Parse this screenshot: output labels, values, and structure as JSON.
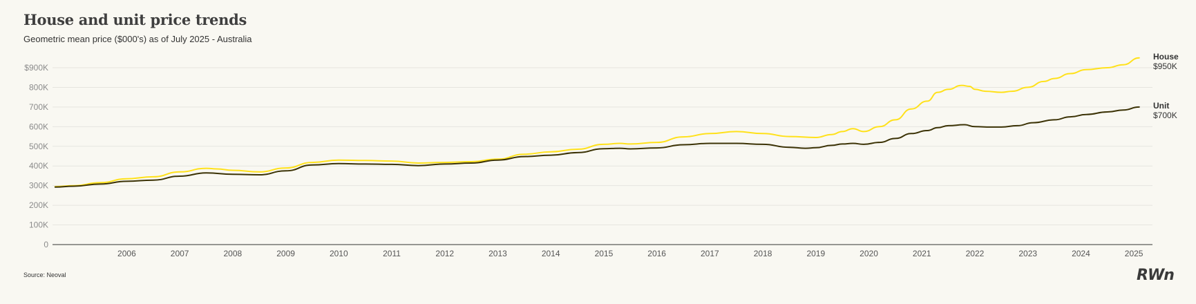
{
  "source": "Source: Neoval",
  "logo_text": "RWn",
  "chart_data": {
    "type": "line",
    "title": "House and unit price trends",
    "subtitle": "Geometric mean price ($000's) as of July 2025 - Australia",
    "xlabel": "",
    "ylabel": "",
    "x_ticks": [
      "2006",
      "2007",
      "2008",
      "2009",
      "2010",
      "2011",
      "2012",
      "2013",
      "2014",
      "2015",
      "2016",
      "2017",
      "2018",
      "2019",
      "2020",
      "2021",
      "2022",
      "2023",
      "2024",
      "2025"
    ],
    "y_ticks": [
      {
        "value": 0,
        "label": "0"
      },
      {
        "value": 100,
        "label": "100K"
      },
      {
        "value": 200,
        "label": "200K"
      },
      {
        "value": 300,
        "label": "300K"
      },
      {
        "value": 400,
        "label": "400K"
      },
      {
        "value": 500,
        "label": "500K"
      },
      {
        "value": 600,
        "label": "600K"
      },
      {
        "value": 700,
        "label": "700K"
      },
      {
        "value": 800,
        "label": "800K"
      },
      {
        "value": 900,
        "label": "$900K"
      }
    ],
    "xlim": [
      2005.1,
      2025.85
    ],
    "ylim": [
      0,
      900
    ],
    "grid": true,
    "series": [
      {
        "name": "House",
        "end_label": "$950K",
        "color": "#ffe11a",
        "x": [
          2005.15,
          2005.5,
          2006.0,
          2006.5,
          2007.0,
          2007.5,
          2008.0,
          2008.2,
          2008.5,
          2009.0,
          2009.5,
          2010.0,
          2010.5,
          2011.0,
          2011.5,
          2012.0,
          2012.5,
          2013.0,
          2013.5,
          2014.0,
          2014.5,
          2015.0,
          2015.5,
          2015.8,
          2016.0,
          2016.5,
          2017.0,
          2017.5,
          2018.0,
          2018.5,
          2019.0,
          2019.5,
          2019.8,
          2020.0,
          2020.2,
          2020.4,
          2020.7,
          2021.0,
          2021.3,
          2021.6,
          2021.8,
          2022.0,
          2022.25,
          2022.4,
          2022.5,
          2022.7,
          2023.0,
          2023.2,
          2023.5,
          2023.8,
          2024.0,
          2024.3,
          2024.6,
          2025.0,
          2025.3,
          2025.6
        ],
        "values": [
          295,
          300,
          315,
          335,
          345,
          370,
          388,
          385,
          378,
          370,
          390,
          418,
          430,
          428,
          425,
          415,
          418,
          422,
          435,
          460,
          472,
          485,
          510,
          515,
          512,
          520,
          548,
          565,
          575,
          565,
          550,
          545,
          560,
          575,
          590,
          575,
          600,
          635,
          690,
          730,
          775,
          790,
          810,
          805,
          790,
          780,
          775,
          780,
          800,
          830,
          845,
          870,
          890,
          900,
          915,
          950
        ]
      },
      {
        "name": "Unit",
        "end_label": "$700K",
        "color": "#3b3205",
        "x": [
          2005.15,
          2005.5,
          2006.0,
          2006.5,
          2007.0,
          2007.5,
          2008.0,
          2008.5,
          2009.0,
          2009.5,
          2010.0,
          2010.5,
          2011.0,
          2011.5,
          2012.0,
          2012.5,
          2013.0,
          2013.5,
          2014.0,
          2014.5,
          2015.0,
          2015.5,
          2015.8,
          2016.0,
          2016.5,
          2017.0,
          2017.5,
          2018.0,
          2018.5,
          2019.0,
          2019.3,
          2019.5,
          2019.8,
          2020.0,
          2020.2,
          2020.4,
          2020.7,
          2021.0,
          2021.3,
          2021.6,
          2021.8,
          2022.0,
          2022.3,
          2022.5,
          2022.8,
          2023.0,
          2023.3,
          2023.6,
          2024.0,
          2024.3,
          2024.6,
          2025.0,
          2025.3,
          2025.6
        ],
        "values": [
          293,
          297,
          308,
          322,
          328,
          348,
          365,
          358,
          355,
          375,
          405,
          412,
          410,
          408,
          402,
          410,
          415,
          430,
          448,
          455,
          468,
          488,
          490,
          487,
          492,
          508,
          515,
          515,
          510,
          495,
          490,
          493,
          505,
          512,
          515,
          510,
          520,
          540,
          565,
          580,
          595,
          605,
          610,
          600,
          598,
          598,
          605,
          620,
          635,
          650,
          662,
          675,
          685,
          700
        ]
      }
    ]
  }
}
